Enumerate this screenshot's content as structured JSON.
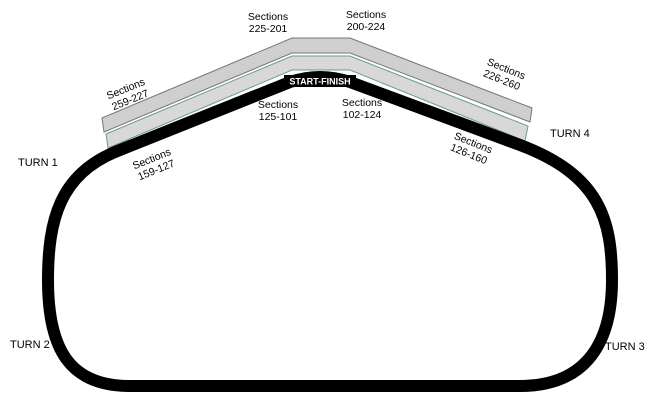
{
  "turns": [
    "TURN 1",
    "TURN 2",
    "TURN 3",
    "TURN 4"
  ],
  "start_finish": "START-FINISH",
  "sections": [
    {
      "lines": [
        "Sections",
        "259-227"
      ]
    },
    {
      "lines": [
        "Sections",
        "225-201"
      ]
    },
    {
      "lines": [
        "Sections",
        "200-224"
      ]
    },
    {
      "lines": [
        "Sections",
        "226-260"
      ]
    },
    {
      "lines": [
        "Sections",
        "125-101"
      ]
    },
    {
      "lines": [
        "Sections",
        "102-124"
      ]
    },
    {
      "lines": [
        "Sections",
        "159-127"
      ]
    },
    {
      "lines": [
        "Sections",
        "126-160"
      ]
    }
  ]
}
